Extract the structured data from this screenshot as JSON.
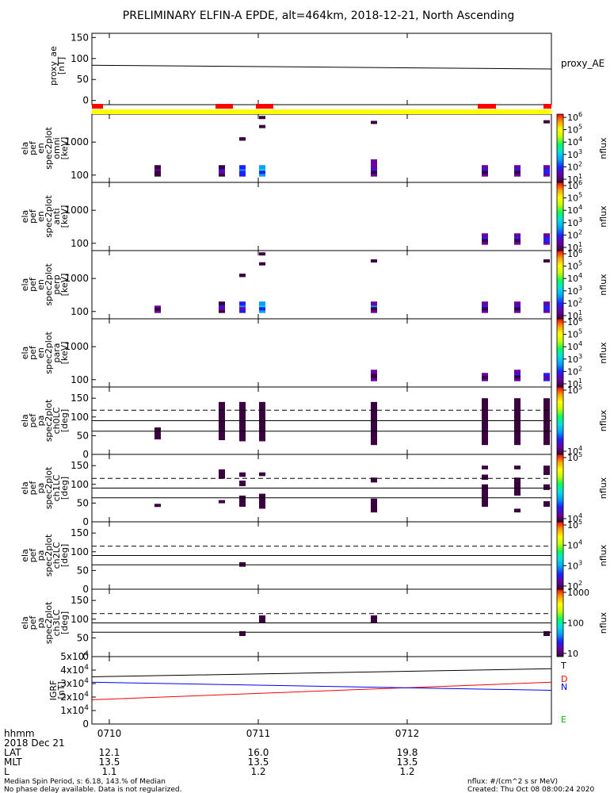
{
  "title": "PRELIMINARY ELFIN-A EPDE, alt=464km, 2018-12-21, North Ascending",
  "x_axis": {
    "ticks": [
      "0710",
      "0711",
      "0712"
    ],
    "row_labels": [
      "hhmm",
      "2018 Dec 21",
      "LAT",
      "MLT",
      "L"
    ],
    "columns": [
      {
        "lat": "12.1",
        "mlt": "13.5",
        "l": "1.1"
      },
      {
        "lat": "16.0",
        "mlt": "13.5",
        "l": "1.2"
      },
      {
        "lat": "19.8",
        "mlt": "13.5",
        "l": "1.2"
      }
    ]
  },
  "footer": {
    "left_1": "Median Spin Period, s: 6.18, 143.% of Median",
    "left_2": "No phase delay available. Data is not regularized.",
    "right_1": "nflux: #/(cm^2 s sr MeV)",
    "right_2": "Created: Thu Oct 08 08:00:24 2020"
  },
  "colorbar_label": "nflux",
  "colors": {
    "status_red": "#ff0000",
    "status_yellow": "#ffff00",
    "spectrogram_colormap": [
      "#3a0040",
      "#6a00a0",
      "#2020ff",
      "#00a0ff",
      "#00e0e0",
      "#00ff60",
      "#c0ff00",
      "#ffff00",
      "#ffa000",
      "#ff0000"
    ],
    "igrf_T": "#000000",
    "igrf_D": "#ff0000",
    "igrf_N": "#0000ff",
    "igrf_E": "#00c000"
  },
  "chart_data": [
    {
      "type": "line",
      "ylabel": "proxy_ae\n[nT]",
      "yticks": [
        "150",
        "100",
        "50",
        "0"
      ],
      "ylim": [
        -10,
        160
      ],
      "series": [
        {
          "name": "proxy_AE",
          "x": [
            0,
            1
          ],
          "values": [
            84,
            75
          ]
        }
      ]
    },
    {
      "type": "heatmap",
      "ylabel": "ela\npef\nen\nspec2plot\nomni\n[keV]",
      "yticks": [
        "1000",
        "100"
      ],
      "cbar": {
        "ticks": [
          "10^6",
          "10^5",
          "10^4",
          "10^3",
          "10^2",
          "10^1"
        ],
        "label": "nflux"
      }
    },
    {
      "type": "heatmap",
      "ylabel": "ela\npef\nen\nspec2plot\nanti\n[keV]",
      "yticks": [
        "1000",
        "100"
      ],
      "cbar": {
        "ticks": [
          "10^6",
          "10^5",
          "10^4",
          "10^3",
          "10^2",
          "10^1"
        ],
        "label": "nflux"
      }
    },
    {
      "type": "heatmap",
      "ylabel": "ela\npef\nen\nspec2plot\nperp\n[keV]",
      "yticks": [
        "1000",
        "100"
      ],
      "cbar": {
        "ticks": [
          "10^6",
          "10^5",
          "10^4",
          "10^3",
          "10^2",
          "10^1"
        ],
        "label": "nflux"
      }
    },
    {
      "type": "heatmap",
      "ylabel": "ela\npef\nen\nspec2plot\npara\n[keV]",
      "yticks": [
        "1000",
        "100"
      ],
      "cbar": {
        "ticks": [
          "10^6",
          "10^5",
          "10^4",
          "10^3",
          "10^2",
          "10^1"
        ],
        "label": "nflux"
      }
    },
    {
      "type": "heatmap",
      "ylabel": "ela\npef\npa\nspec2plot\nch0LC\n[deg]",
      "yticks": [
        "150",
        "100",
        "50",
        "0"
      ],
      "ylim": [
        0,
        180
      ],
      "cbar": {
        "ticks": [
          "10^5",
          "10^4"
        ],
        "label": "nflux"
      }
    },
    {
      "type": "heatmap",
      "ylabel": "ela\npef\npa\nspec2plot\nch1LC\n[deg]",
      "yticks": [
        "150",
        "100",
        "50",
        "0"
      ],
      "ylim": [
        0,
        180
      ],
      "cbar": {
        "ticks": [
          "10^5",
          "10^4"
        ],
        "label": "nflux"
      }
    },
    {
      "type": "heatmap",
      "ylabel": "ela\npef\npa\nspec2plot\nch2LC\n[deg]",
      "yticks": [
        "150",
        "100",
        "50",
        "0"
      ],
      "ylim": [
        0,
        180
      ],
      "cbar": {
        "ticks": [
          "10^5",
          "10^4",
          "10^3",
          "10^2"
        ],
        "label": "nflux"
      }
    },
    {
      "type": "heatmap",
      "ylabel": "ela\npef\npa\nspec2plot\nch3LC\n[deg]",
      "yticks": [
        "150",
        "100",
        "50",
        "0"
      ],
      "ylim": [
        0,
        180
      ],
      "cbar": {
        "ticks": [
          "1000",
          "100",
          "10"
        ],
        "label": "nflux"
      }
    },
    {
      "type": "line",
      "ylabel": "IGRF\n[nT]",
      "yticks": [
        "5x10^4",
        "4x10^4",
        "3x10^4",
        "2x10^4",
        "1x10^4",
        "0"
      ],
      "ylim": [
        0,
        50000
      ],
      "series": [
        {
          "name": "T",
          "x": [
            0,
            1
          ],
          "values": [
            35000,
            41000
          ]
        },
        {
          "name": "D",
          "x": [
            0,
            1
          ],
          "values": [
            18000,
            31000
          ]
        },
        {
          "name": "N",
          "x": [
            0,
            1
          ],
          "values": [
            31000,
            25000
          ]
        },
        {
          "name": "E",
          "x": [
            0,
            1
          ],
          "values": [
            0,
            0
          ]
        }
      ]
    }
  ]
}
